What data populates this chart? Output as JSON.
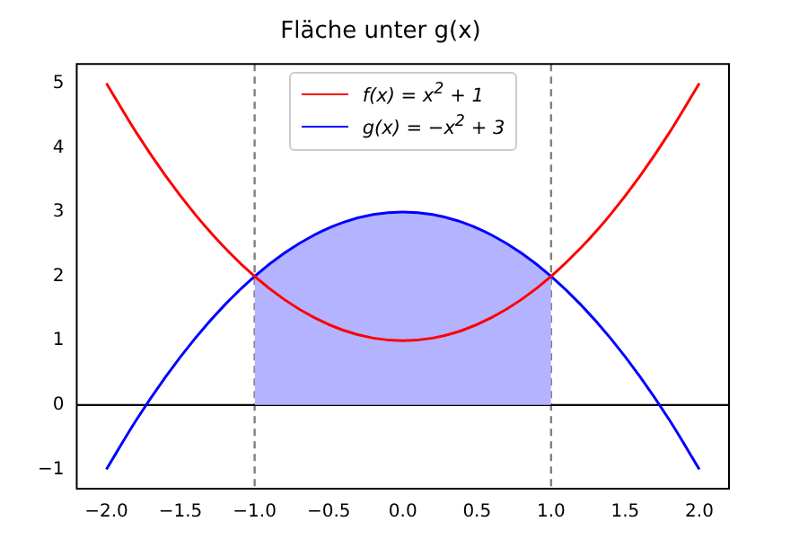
{
  "chart_data": {
    "type": "line",
    "title": "Fläche unter g(x)",
    "x": [
      -2,
      -1.8,
      -1.6,
      -1.4,
      -1.2,
      -1,
      -0.8,
      -0.6,
      -0.4,
      -0.2,
      0,
      0.2,
      0.4,
      0.6,
      0.8,
      1,
      1.2,
      1.4,
      1.6,
      1.8,
      2
    ],
    "series": [
      {
        "name": "f(x) = x$^{2}$ + 1",
        "color": "#ff0000",
        "values": [
          5,
          4.24,
          3.56,
          2.96,
          2.44,
          2,
          1.64,
          1.36,
          1.16,
          1.04,
          1,
          1.04,
          1.16,
          1.36,
          1.64,
          2,
          2.44,
          2.96,
          3.56,
          4.24,
          5
        ]
      },
      {
        "name": "g(x) = −x$^{2}$ + 3",
        "color": "#0000ff",
        "values": [
          -1,
          -0.24,
          0.44,
          1.04,
          1.56,
          2,
          2.36,
          2.64,
          2.84,
          2.96,
          3,
          2.96,
          2.84,
          2.64,
          2.36,
          2,
          1.56,
          1.04,
          0.44,
          -0.24,
          -1
        ]
      },
      {
        "type": "area",
        "color": "#b3b3ff",
        "x": [
          -1,
          -0.8,
          -0.6,
          -0.4,
          -0.2,
          0,
          0.2,
          0.4,
          0.6,
          0.8,
          1
        ],
        "values": [
          2,
          2.36,
          2.64,
          2.84,
          2.96,
          3,
          2.96,
          2.84,
          2.64,
          2.36,
          2
        ]
      }
    ],
    "xlim": [
      -2.2,
      2.2
    ],
    "xticks": [
      {
        "value": -2,
        "label": "−2.0"
      },
      {
        "value": -1.5,
        "label": "−1.5"
      },
      {
        "value": -1,
        "label": "−1.0"
      },
      {
        "value": -0.5,
        "label": "−0.5"
      },
      {
        "value": 0,
        "label": "0.0"
      },
      {
        "value": 0.5,
        "label": "0.5"
      },
      {
        "value": 1,
        "label": "1.0"
      },
      {
        "value": 1.5,
        "label": "1.5"
      },
      {
        "value": 2,
        "label": "2.0"
      }
    ],
    "ylim": [
      -1.3,
      5.3
    ],
    "yticks": [
      {
        "value": -1,
        "label": "−1"
      },
      0,
      1,
      2,
      3,
      4,
      5
    ],
    "ref_lines": [
      {
        "axis": "x",
        "value": -1,
        "color": "#808080",
        "line_style": "dashed"
      },
      {
        "axis": "x",
        "value": 1,
        "color": "#808080",
        "line_style": "dashed"
      },
      {
        "axis": "y",
        "value": 0,
        "color": "#000000",
        "line_style": "solid"
      }
    ],
    "legend": "top",
    "grid": false,
    "marker": "none",
    "line_style": "solid"
  }
}
